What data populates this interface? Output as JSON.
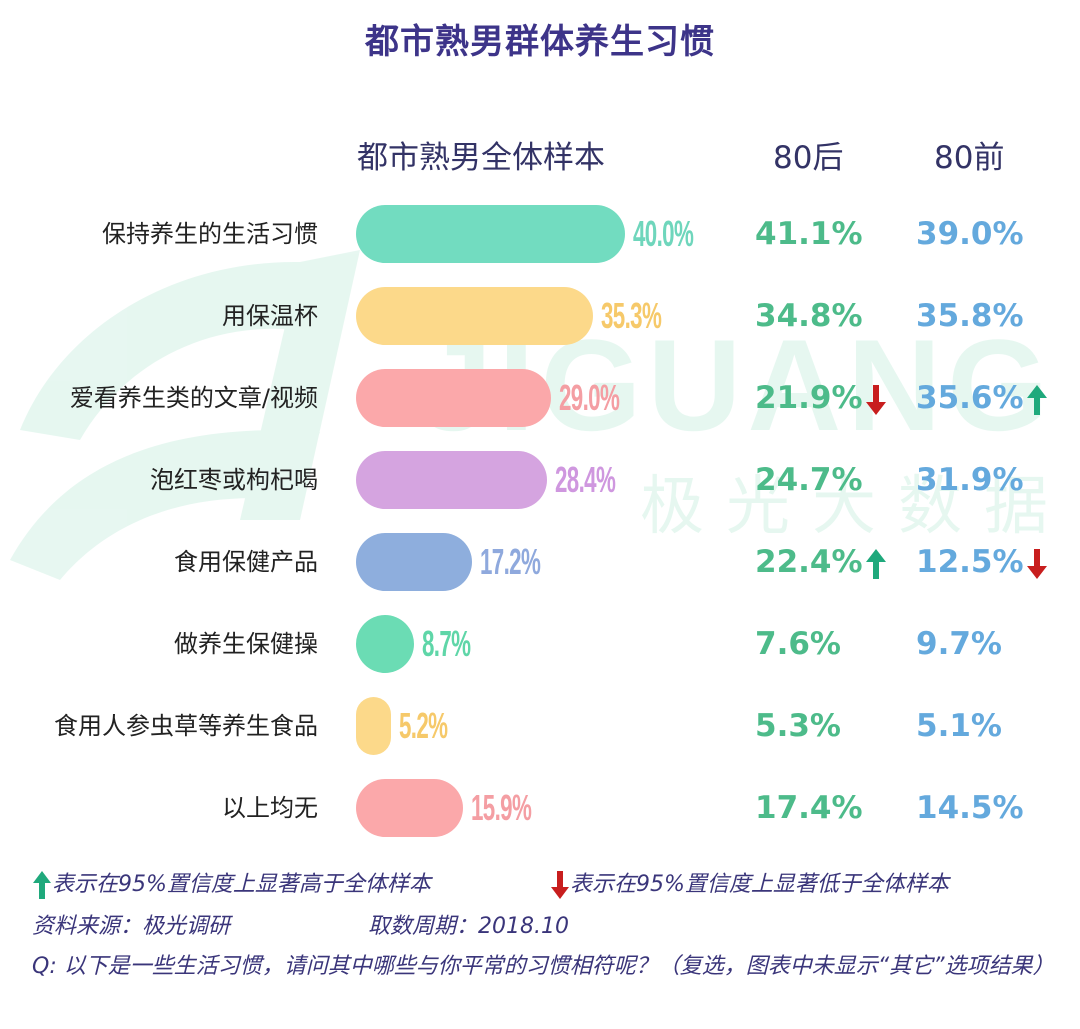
{
  "title": "都市熟男群体养生习惯",
  "watermark": {
    "logo_text": "JIGUANG",
    "cn_text": "极光大数据"
  },
  "columns": {
    "total": "都市熟男全体样本",
    "after80": "80后",
    "before80": "80前"
  },
  "legend": {
    "up_text": "表示在95%置信度上显著高于全体样本",
    "down_text": "表示在95%置信度上显著低于全体样本",
    "up_color": "#1fa97c",
    "down_color": "#c81e1e"
  },
  "source": {
    "label": "资料来源：极光调研",
    "period": "取数周期：2018.10"
  },
  "question": "Q: 以下是一些生活习惯，请问其中哪些与你平常的习惯相符呢？（复选，图表中未显示“其它”选项结果）",
  "chart_data": {
    "type": "bar",
    "orientation": "horizontal",
    "title": "都市熟男群体养生习惯",
    "categories": [
      "保持养生的生活习惯",
      "用保温杯",
      "爱看养生类的文章/视频",
      "泡红枣或枸杞喝",
      "食用保健产品",
      "做养生保健操",
      "食用人参虫草等养生食品",
      "以上均无"
    ],
    "series": [
      {
        "name": "都市熟男全体样本",
        "values": [
          40.0,
          35.3,
          29.0,
          28.4,
          17.2,
          8.7,
          5.2,
          15.9
        ],
        "labels": [
          "40.0%",
          "35.3%",
          "29.0%",
          "28.4%",
          "17.2%",
          "8.7%",
          "5.2%",
          "15.9%"
        ]
      },
      {
        "name": "80后",
        "values": [
          41.1,
          34.8,
          21.9,
          24.7,
          22.4,
          7.6,
          5.3,
          17.4
        ],
        "labels": [
          "41.1%",
          "34.8%",
          "21.9%",
          "24.7%",
          "22.4%",
          "7.6%",
          "5.3%",
          "17.4%"
        ],
        "significance": [
          "",
          "",
          "down",
          "",
          "up",
          "",
          "",
          ""
        ]
      },
      {
        "name": "80前",
        "values": [
          39.0,
          35.8,
          35.6,
          31.9,
          12.5,
          9.7,
          5.1,
          14.5
        ],
        "labels": [
          "39.0%",
          "35.8%",
          "35.6%",
          "31.9%",
          "12.5%",
          "9.7%",
          "5.1%",
          "14.5%"
        ],
        "significance": [
          "",
          "",
          "up",
          "",
          "down",
          "",
          "",
          ""
        ]
      }
    ],
    "bar_colors": [
      "#72dcc0",
      "#fcd98a",
      "#fba8aa",
      "#d5a4e0",
      "#8eaedd",
      "#6bdcb4",
      "#fcd98a",
      "#fba8aa"
    ],
    "value_label_colors": [
      "#6fd6bc",
      "#f6c96a",
      "#f49ea3",
      "#cf97df",
      "#8fa9dd",
      "#5fd6a8",
      "#f6c96a",
      "#f49ea3"
    ],
    "unit": "%"
  }
}
